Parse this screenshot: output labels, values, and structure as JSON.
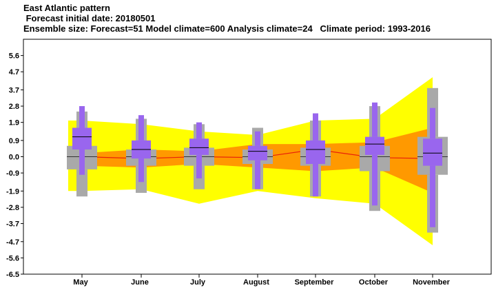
{
  "header": {
    "title": "East Atlantic pattern",
    "subtitle": " Forecast initial date: 20180501",
    "info": "Ensemble size: Forecast=51 Model climate=600 Analysis climate=24   Climate period: 1993-2016"
  },
  "colors": {
    "climate_outer": "#ffff00",
    "climate_inner": "#ff9900",
    "climate_median": "#e8200a",
    "model_climate_box": "#a9a9a9",
    "forecast_box": "#9966ee",
    "median_line": "#000000"
  },
  "chart_data": {
    "type": "box",
    "categories": [
      "May",
      "June",
      "July",
      "August",
      "September",
      "October",
      "November"
    ],
    "ylim": [
      -6.5,
      6.5
    ],
    "yticks": [
      "5.6",
      "4.7",
      "3.7",
      "2.8",
      "1.9",
      "0.9",
      "0.0",
      "-0.9",
      "-1.9",
      "-2.8",
      "-3.7",
      "-4.7",
      "-5.6",
      "-6.5"
    ],
    "ytick_values": [
      5.6,
      4.7,
      3.7,
      2.8,
      1.9,
      0.9,
      0.0,
      -0.9,
      -1.9,
      -2.8,
      -3.7,
      -4.7,
      -5.6,
      -6.5
    ],
    "analysis_climate": {
      "outer_upper": [
        2.0,
        1.8,
        1.4,
        1.2,
        2.0,
        2.1,
        4.4
      ],
      "outer_lower": [
        -1.9,
        -1.8,
        -2.6,
        -1.9,
        -2.3,
        -2.6,
        -4.9
      ],
      "inner_upper": [
        0.2,
        0.4,
        0.3,
        0.7,
        0.7,
        0.8,
        1.6
      ],
      "inner_lower": [
        -0.5,
        -0.6,
        -0.4,
        -0.6,
        -0.8,
        -0.6,
        -2.0
      ],
      "median": [
        0.0,
        -0.1,
        0.0,
        -0.05,
        0.4,
        -0.05,
        -0.1
      ]
    },
    "model_climate": {
      "min": [
        -2.2,
        -2.0,
        -1.8,
        -1.8,
        -2.2,
        -3.0,
        -4.2
      ],
      "q1": [
        -0.7,
        -0.5,
        -0.5,
        -0.4,
        -0.5,
        -0.8,
        -1.0
      ],
      "median": [
        0.0,
        0.0,
        0.0,
        0.0,
        0.0,
        0.0,
        0.0
      ],
      "q3": [
        0.6,
        0.4,
        0.5,
        0.4,
        0.5,
        0.6,
        1.1
      ],
      "max": [
        2.5,
        2.1,
        1.8,
        1.6,
        2.0,
        2.8,
        3.8
      ]
    },
    "forecast": {
      "min": [
        -1.0,
        -1.4,
        -1.2,
        -1.8,
        -2.2,
        -2.7,
        -3.9
      ],
      "q1": [
        0.4,
        -0.1,
        0.1,
        -0.2,
        -0.4,
        0.1,
        -0.5
      ],
      "median": [
        1.1,
        0.4,
        0.5,
        0.3,
        0.4,
        0.7,
        0.2
      ],
      "q3": [
        1.6,
        0.9,
        1.0,
        0.6,
        0.9,
        1.1,
        1.0
      ],
      "max": [
        2.8,
        2.3,
        1.9,
        1.4,
        2.4,
        3.0,
        2.7
      ]
    }
  }
}
